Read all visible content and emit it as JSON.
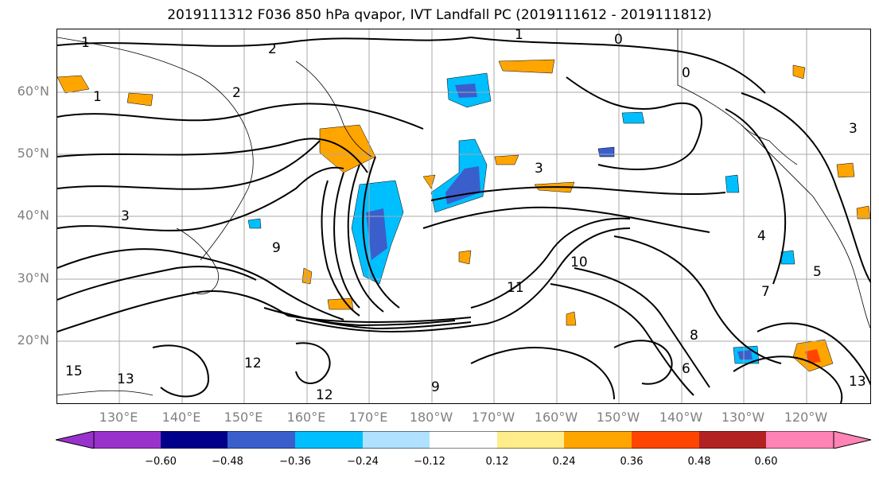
{
  "title": "2019111312 F036 850 hPa qvapor, IVT Landfall PC (2019111612 - 2019111812)",
  "map": {
    "lat_labels": [
      "60°N",
      "50°N",
      "40°N",
      "30°N",
      "20°N"
    ],
    "lon_labels": [
      "130°E",
      "140°E",
      "150°E",
      "160°E",
      "170°E",
      "180°W",
      "170°W",
      "160°W",
      "150°W",
      "140°W",
      "130°W",
      "120°W"
    ],
    "contour_labels": [
      "1",
      "2",
      "3",
      "0",
      "1",
      "2",
      "3",
      "4",
      "9",
      "10",
      "11",
      "12",
      "13",
      "15",
      "8",
      "6",
      "5",
      "7",
      "0",
      "1",
      "3",
      "12",
      "13",
      "9"
    ]
  },
  "colorbar": {
    "colors": [
      "#9932cc",
      "#00008b",
      "#3a5fcd",
      "#00bfff",
      "#b0e2ff",
      "#ffffff",
      "#ffec8b",
      "#ffa500",
      "#ff4500",
      "#b22222",
      "#ff83b4"
    ],
    "tick_labels": [
      "−0.60",
      "−0.48",
      "−0.36",
      "−0.24",
      "−0.12",
      "0.12",
      "0.24",
      "0.36",
      "0.48",
      "0.60"
    ]
  }
}
